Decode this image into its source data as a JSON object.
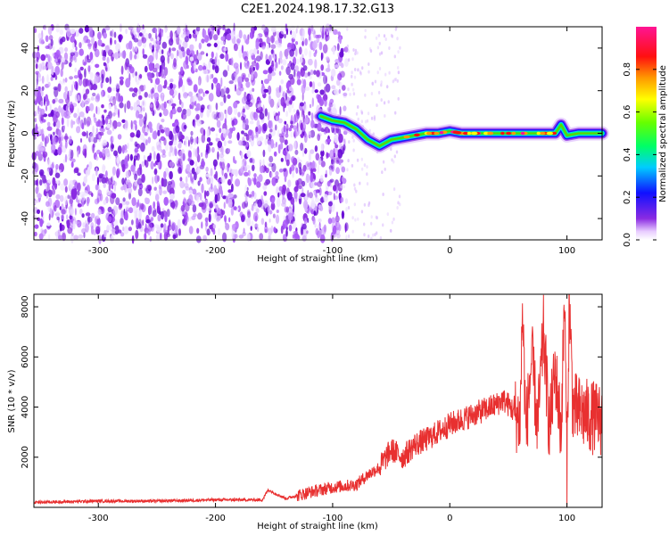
{
  "title": "C2E1.2024.198.17.32.G13",
  "colors": {
    "spectrogram_noise": "#8a2be2",
    "snr_line": "#e83030",
    "axis": "#000000"
  },
  "colorbar": {
    "label": "Normalized spectral amplitude",
    "ticks": [
      "0.0",
      "0.2",
      "0.4",
      "0.6",
      "0.8"
    ],
    "range": [
      0,
      1
    ],
    "colormap": "rainbow (white → purple → blue → cyan → green → yellow → orange → red → magenta)"
  },
  "chart_data": [
    {
      "type": "heatmap",
      "title": "C2E1.2024.198.17.32.G13",
      "xlabel": "Height of straight line (km)",
      "ylabel": "Frequency (Hz)",
      "xlim": [
        -355,
        130
      ],
      "ylim": [
        -50,
        50
      ],
      "xticks": [
        "-300",
        "-200",
        "-100",
        "0",
        "100"
      ],
      "yticks": [
        "-40",
        "-20",
        "0",
        "20",
        "40"
      ],
      "grid": false,
      "noise_region_x": [
        -355,
        -88
      ],
      "signal_track": {
        "x": [
          -110,
          -100,
          -90,
          -80,
          -70,
          -60,
          -50,
          -40,
          -30,
          -20,
          -10,
          0,
          10,
          20,
          30,
          40,
          50,
          60,
          70,
          80,
          90,
          95,
          100,
          110,
          120,
          130
        ],
        "y_hz": [
          8,
          6,
          5,
          2,
          -3,
          -6,
          -3,
          -2,
          -1,
          0,
          0,
          1,
          0,
          0,
          0,
          0,
          0,
          0,
          0,
          0,
          0,
          4,
          -1,
          0,
          0,
          0
        ]
      }
    },
    {
      "type": "line",
      "title": "",
      "xlabel": "Height of straight line (km)",
      "ylabel": "SNR (10 * v/v)",
      "xlim": [
        -355,
        130
      ],
      "ylim": [
        0,
        8500
      ],
      "xticks": [
        "-300",
        "-200",
        "-100",
        "0",
        "100"
      ],
      "yticks": [
        "2000",
        "4000",
        "6000",
        "8000"
      ],
      "grid": false,
      "series": [
        {
          "name": "",
          "x": [
            -355,
            -300,
            -250,
            -200,
            -160,
            -155,
            -140,
            -120,
            -100,
            -80,
            -70,
            -60,
            -50,
            -40,
            -30,
            -20,
            -10,
            0,
            10,
            20,
            30,
            40,
            45,
            50,
            55,
            60,
            62,
            65,
            70,
            75,
            80,
            85,
            90,
            95,
            98,
            100,
            102,
            105,
            110,
            120,
            130
          ],
          "y": [
            200,
            250,
            250,
            300,
            300,
            700,
            350,
            600,
            800,
            900,
            1300,
            1600,
            2300,
            2000,
            2500,
            2700,
            3000,
            3300,
            3500,
            3700,
            3900,
            4100,
            4300,
            4100,
            3800,
            3400,
            8000,
            3000,
            6000,
            3200,
            7000,
            3100,
            5500,
            3000,
            8500,
            1500,
            8500,
            4000,
            3800,
            3600,
            3500
          ]
        }
      ]
    }
  ]
}
